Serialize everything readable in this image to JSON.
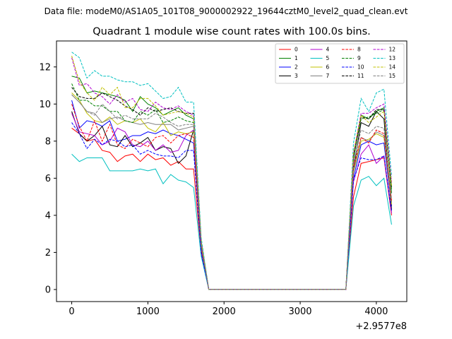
{
  "header": {
    "suptitle": "Data file: modeM0/AS1A05_101T08_9000002922_19644cztM0_level2_quad_clean.evt"
  },
  "chart_data": {
    "type": "line",
    "title": "Quadrant 1 module wise count rates with 100.0s bins.",
    "xlabel": "",
    "ylabel": "",
    "x_offset_label": "+2.9577e8",
    "xlim": [
      -200,
      4400
    ],
    "ylim": [
      -0.65,
      13.4
    ],
    "xticks": [
      0,
      1000,
      2000,
      3000,
      4000
    ],
    "yticks": [
      0,
      2,
      4,
      6,
      8,
      10,
      12
    ],
    "x_tick_labels": [
      "0",
      "1000",
      "2000",
      "3000",
      "4000"
    ],
    "y_tick_labels": [
      "0",
      "2",
      "4",
      "6",
      "8",
      "10",
      "12"
    ],
    "legend_position": "upper right",
    "legend_columns": 4,
    "x": [
      0,
      100,
      200,
      300,
      400,
      500,
      600,
      700,
      800,
      900,
      1000,
      1100,
      1200,
      1300,
      1400,
      1500,
      1600,
      1700,
      1800,
      1900,
      2000,
      2100,
      2200,
      2300,
      2400,
      2500,
      2600,
      2700,
      2800,
      2900,
      3000,
      3100,
      3200,
      3300,
      3400,
      3500,
      3600,
      3700,
      3800,
      3900,
      4000,
      4100,
      4200
    ],
    "series": [
      {
        "name": "0",
        "color": "#ff0000",
        "dash": "solid",
        "values": [
          8.7,
          8.4,
          8.0,
          8.1,
          7.5,
          7.4,
          6.9,
          7.2,
          7.3,
          6.9,
          7.3,
          7.0,
          7.1,
          6.7,
          6.9,
          6.5,
          6.5,
          2.0,
          0,
          0,
          0,
          0,
          0,
          0,
          0,
          0,
          0,
          0,
          0,
          0,
          0,
          0,
          0,
          0,
          0,
          0,
          0,
          5.0,
          6.8,
          6.9,
          7.0,
          7.1,
          4.0
        ]
      },
      {
        "name": "1",
        "color": "#008000",
        "dash": "solid",
        "values": [
          11.5,
          11.4,
          10.6,
          10.7,
          10.6,
          10.5,
          10.4,
          10.2,
          9.6,
          10.4,
          10.0,
          9.8,
          9.4,
          9.6,
          9.8,
          9.4,
          9.2,
          2.5,
          0,
          0,
          0,
          0,
          0,
          0,
          0,
          0,
          0,
          0,
          0,
          0,
          0,
          0,
          0,
          0,
          0,
          0,
          0,
          7.0,
          9.4,
          9.2,
          9.6,
          9.8,
          5.2
        ]
      },
      {
        "name": "2",
        "color": "#0000ff",
        "dash": "solid",
        "values": [
          10.2,
          8.7,
          9.1,
          9.0,
          8.8,
          9.1,
          8.0,
          8.1,
          8.3,
          8.3,
          8.5,
          8.4,
          8.6,
          8.4,
          8.3,
          8.1,
          7.9,
          2.2,
          0,
          0,
          0,
          0,
          0,
          0,
          0,
          0,
          0,
          0,
          0,
          0,
          0,
          0,
          0,
          0,
          0,
          0,
          0,
          6.0,
          7.8,
          8.0,
          7.8,
          7.9,
          4.5
        ]
      },
      {
        "name": "3",
        "color": "#000000",
        "dash": "solid",
        "values": [
          9.6,
          8.4,
          8.0,
          8.3,
          8.8,
          7.8,
          7.7,
          8.3,
          7.7,
          7.9,
          8.2,
          7.5,
          7.7,
          7.6,
          6.8,
          7.2,
          8.6,
          2.0,
          0,
          0,
          0,
          0,
          0,
          0,
          0,
          0,
          0,
          0,
          0,
          0,
          0,
          0,
          0,
          0,
          0,
          0,
          0,
          6.5,
          9.0,
          8.8,
          9.6,
          9.2,
          4.3
        ]
      },
      {
        "name": "4",
        "color": "#b000d0",
        "dash": "solid",
        "values": [
          9.5,
          8.5,
          8.4,
          8.3,
          7.8,
          8.0,
          8.7,
          8.5,
          7.8,
          7.7,
          8.0,
          7.5,
          7.8,
          7.4,
          7.5,
          8.3,
          8.6,
          2.0,
          0,
          0,
          0,
          0,
          0,
          0,
          0,
          0,
          0,
          0,
          0,
          0,
          0,
          0,
          0,
          0,
          0,
          0,
          0,
          5.8,
          7.3,
          7.8,
          6.8,
          7.2,
          4.1
        ]
      },
      {
        "name": "5",
        "color": "#00c0c0",
        "dash": "solid",
        "values": [
          7.3,
          6.9,
          7.1,
          7.1,
          7.1,
          6.4,
          6.4,
          6.4,
          6.4,
          6.5,
          6.4,
          6.5,
          5.7,
          6.2,
          5.9,
          5.8,
          5.5,
          1.8,
          0,
          0,
          0,
          0,
          0,
          0,
          0,
          0,
          0,
          0,
          0,
          0,
          0,
          0,
          0,
          0,
          0,
          0,
          0,
          4.5,
          5.9,
          6.1,
          5.6,
          6.0,
          3.5
        ]
      },
      {
        "name": "6",
        "color": "#c0c000",
        "dash": "solid",
        "values": [
          10.6,
          10.2,
          9.5,
          9.1,
          9.0,
          9.3,
          8.9,
          9.1,
          9.0,
          9.2,
          8.7,
          8.5,
          9.0,
          8.3,
          8.5,
          8.4,
          8.5,
          2.3,
          0,
          0,
          0,
          0,
          0,
          0,
          0,
          0,
          0,
          0,
          0,
          0,
          0,
          0,
          0,
          0,
          0,
          0,
          0,
          6.3,
          8.0,
          8.1,
          8.4,
          8.2,
          4.6
        ]
      },
      {
        "name": "7",
        "color": "#808080",
        "dash": "solid",
        "values": [
          10.5,
          10.1,
          9.6,
          9.5,
          9.0,
          9.2,
          9.3,
          9.1,
          9.0,
          8.9,
          9.0,
          8.9,
          8.9,
          8.9,
          8.6,
          8.7,
          8.8,
          2.4,
          0,
          0,
          0,
          0,
          0,
          0,
          0,
          0,
          0,
          0,
          0,
          0,
          0,
          0,
          0,
          0,
          0,
          0,
          0,
          6.4,
          8.2,
          8.0,
          8.5,
          8.3,
          4.7
        ]
      },
      {
        "name": "8",
        "color": "#ff0000",
        "dash": "dashed",
        "values": [
          10.0,
          8.8,
          8.0,
          9.1,
          8.0,
          8.9,
          7.8,
          7.6,
          8.1,
          7.9,
          7.7,
          8.2,
          8.3,
          7.9,
          8.3,
          8.4,
          8.2,
          2.2,
          0,
          0,
          0,
          0,
          0,
          0,
          0,
          0,
          0,
          0,
          0,
          0,
          0,
          0,
          0,
          0,
          0,
          0,
          0,
          6.6,
          8.2,
          7.9,
          8.6,
          8.4,
          4.8
        ]
      },
      {
        "name": "9",
        "color": "#008000",
        "dash": "dashed",
        "values": [
          11.1,
          10.2,
          10.2,
          9.9,
          9.9,
          9.6,
          9.6,
          9.1,
          9.0,
          9.6,
          9.4,
          9.7,
          9.0,
          9.1,
          9.3,
          9.1,
          9.0,
          2.4,
          0,
          0,
          0,
          0,
          0,
          0,
          0,
          0,
          0,
          0,
          0,
          0,
          0,
          0,
          0,
          0,
          0,
          0,
          0,
          7.1,
          9.2,
          9.3,
          9.5,
          9.7,
          5.4
        ]
      },
      {
        "name": "10",
        "color": "#0000ff",
        "dash": "dashed",
        "values": [
          9.0,
          8.4,
          7.6,
          8.1,
          7.8,
          8.1,
          8.0,
          7.7,
          7.8,
          7.3,
          7.5,
          7.3,
          7.2,
          7.2,
          7.1,
          7.5,
          7.5,
          2.0,
          0,
          0,
          0,
          0,
          0,
          0,
          0,
          0,
          0,
          0,
          0,
          0,
          0,
          0,
          0,
          0,
          0,
          0,
          0,
          5.9,
          7.1,
          7.0,
          7.0,
          7.2,
          4.2
        ]
      },
      {
        "name": "11",
        "color": "#000000",
        "dash": "dashed",
        "values": [
          10.9,
          10.4,
          10.3,
          10.3,
          10.6,
          10.4,
          10.2,
          9.9,
          9.7,
          9.4,
          9.8,
          9.6,
          9.7,
          9.8,
          9.6,
          9.5,
          9.5,
          2.6,
          0,
          0,
          0,
          0,
          0,
          0,
          0,
          0,
          0,
          0,
          0,
          0,
          0,
          0,
          0,
          0,
          0,
          0,
          0,
          7.2,
          9.3,
          9.2,
          9.7,
          9.7,
          5.5
        ]
      },
      {
        "name": "12",
        "color": "#b000d0",
        "dash": "dashed",
        "values": [
          12.5,
          11.0,
          11.1,
          10.6,
          10.4,
          10.0,
          10.5,
          10.1,
          10.3,
          9.7,
          9.6,
          10.1,
          9.8,
          9.7,
          9.9,
          9.6,
          9.4,
          2.6,
          0,
          0,
          0,
          0,
          0,
          0,
          0,
          0,
          0,
          0,
          0,
          0,
          0,
          0,
          0,
          0,
          0,
          0,
          0,
          7.3,
          9.5,
          9.5,
          9.8,
          10.0,
          5.8
        ]
      },
      {
        "name": "13",
        "color": "#00c0c0",
        "dash": "dashed",
        "values": [
          12.8,
          12.5,
          11.4,
          11.8,
          11.5,
          11.5,
          11.3,
          11.2,
          11.2,
          11.0,
          11.1,
          10.7,
          10.3,
          10.4,
          10.9,
          10.1,
          10.1,
          2.8,
          0,
          0,
          0,
          0,
          0,
          0,
          0,
          0,
          0,
          0,
          0,
          0,
          0,
          0,
          0,
          0,
          0,
          0,
          0,
          7.9,
          10.3,
          9.6,
          10.6,
          10.8,
          6.1
        ]
      },
      {
        "name": "14",
        "color": "#c0c000",
        "dash": "dashed",
        "values": [
          12.6,
          11.2,
          10.6,
          10.2,
          10.9,
          10.5,
          10.9,
          9.8,
          9.8,
          10.3,
          10.3,
          9.9,
          9.4,
          9.5,
          9.6,
          9.5,
          9.3,
          2.6,
          0,
          0,
          0,
          0,
          0,
          0,
          0,
          0,
          0,
          0,
          0,
          0,
          0,
          0,
          0,
          0,
          0,
          0,
          0,
          7.4,
          9.4,
          9.0,
          9.3,
          9.6,
          5.6
        ]
      },
      {
        "name": "15",
        "color": "#808080",
        "dash": "dashed",
        "values": [
          10.5,
          10.1,
          9.6,
          9.4,
          10.0,
          9.6,
          9.2,
          9.4,
          9.2,
          9.2,
          9.2,
          9.5,
          9.3,
          9.0,
          8.8,
          8.9,
          8.9,
          2.4,
          0,
          0,
          0,
          0,
          0,
          0,
          0,
          0,
          0,
          0,
          0,
          0,
          0,
          0,
          0,
          0,
          0,
          0,
          0,
          6.8,
          8.6,
          8.4,
          8.8,
          8.7,
          4.9
        ]
      }
    ]
  }
}
